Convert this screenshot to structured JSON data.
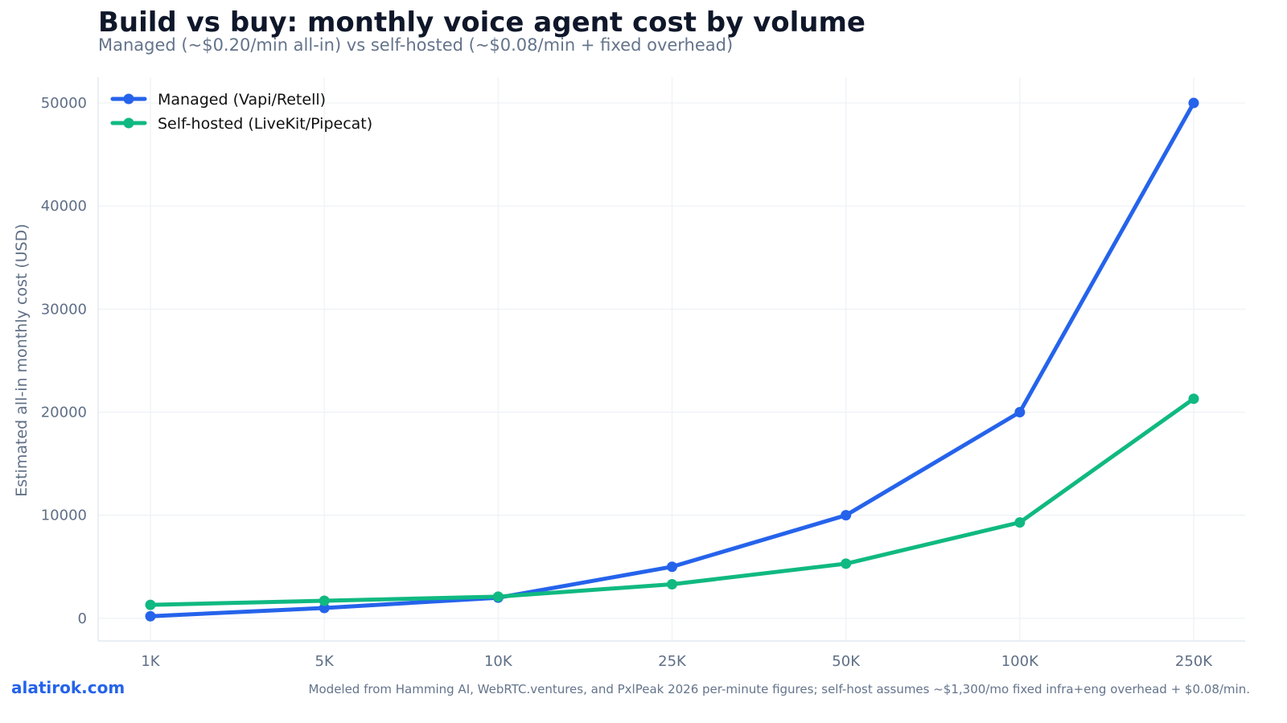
{
  "brand": "alatirok.com",
  "source_note": "Modeled from Hamming AI, WebRTC.ventures, and PxlPeak 2026 per-minute figures; self-host assumes ~$1,300/mo fixed infra+eng overhead + $0.08/min.",
  "chart_data": {
    "type": "line",
    "title": "Build vs buy: monthly voice agent cost by volume",
    "subtitle": "Managed (~$0.20/min all-in) vs self-hosted (~$0.08/min + fixed overhead)",
    "xlabel": "",
    "ylabel": "Estimated all-in monthly cost (USD)",
    "categories": [
      "1K",
      "5K",
      "10K",
      "25K",
      "50K",
      "100K",
      "250K"
    ],
    "ylim": [
      -2200,
      52500
    ],
    "yticks": [
      0,
      10000,
      20000,
      30000,
      40000,
      50000
    ],
    "grid": true,
    "legend_position": "top-left",
    "series": [
      {
        "name": "Managed (Vapi/Retell)",
        "color": "#2563eb",
        "values": [
          200,
          1000,
          2000,
          5000,
          10000,
          20000,
          50000
        ]
      },
      {
        "name": "Self-hosted (LiveKit/Pipecat)",
        "color": "#10b981",
        "values": [
          1300,
          1700,
          2100,
          3300,
          5300,
          9300,
          21300
        ]
      }
    ]
  }
}
